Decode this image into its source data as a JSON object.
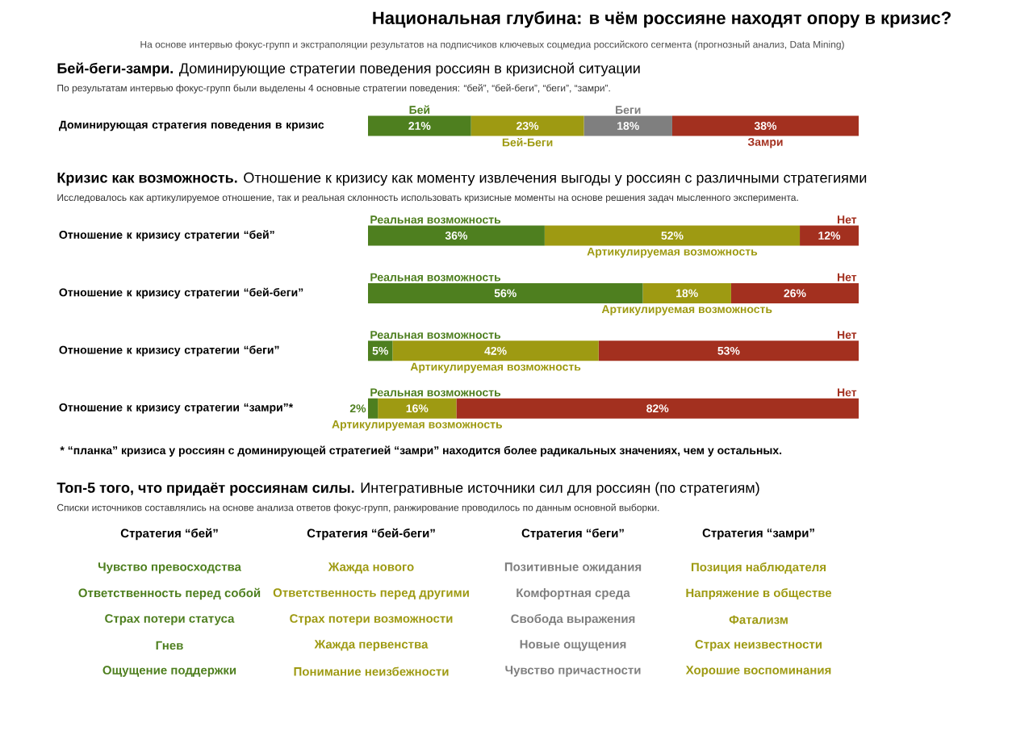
{
  "chart_data": [
    {
      "type": "other",
      "title": "Национальная глубина: в чём россияне находят опору в кризис?",
      "subtitle": "На основе интервью фокус-групп и экстраполяции результатов на подписчиков ключевых соцмедиа российского сегмента (прогнозный анализ, Data Mining)"
    },
    {
      "type": "bar",
      "orientation": "horizontal",
      "stacked": true,
      "tick_labels": "y",
      "title": "**Бей-беги-замри.** Доминирующие стратегии поведения россиян в кризисной ситуации",
      "subtitle": "По результатам интервью фокус-групп были выделены 4 основные стратегии поведения: “бей”, “бей-беги”, “беги”, “замри”.",
      "categories": [
        "Доминирующая стратегия поведения в кризис"
      ],
      "series": [
        {
          "name": "Бей",
          "color": "#4e7f1f",
          "values": [
            21
          ],
          "value_labels": [
            "21%"
          ]
        },
        {
          "name": "Бей-Беги",
          "color": "#9e9a12",
          "values": [
            23
          ],
          "value_labels": [
            "23%"
          ]
        },
        {
          "name": "Беги",
          "color": "#7f7f7f",
          "values": [
            18
          ],
          "value_labels": [
            "18%"
          ]
        },
        {
          "name": "Замри",
          "color": "#a3301f",
          "values": [
            38
          ],
          "value_labels": [
            "38%"
          ]
        }
      ]
    },
    {
      "type": "bar",
      "orientation": "horizontal",
      "stacked": true,
      "tick_labels": "y",
      "title": "**Кризис как возможность.** Отношение к кризису как моменту извлечения выгоды у россиян с различными стратегиями",
      "subtitle": "Исследовалось как артикулируемое отношение, так и реальная склонность использовать кризисные моменты на основе решения задач мысленного эксперимента.",
      "categories": [
        "Отношение к кризису стратегии “бей”",
        "Отношение к кризису стратегии “бей-беги”",
        "Отношение к кризису стратегии “беги”",
        "Отношение к кризису стратегии “замри”*"
      ],
      "series": [
        {
          "name": "Реальная возможность",
          "color": "#4e7f1f",
          "values": [
            36,
            56,
            5,
            2
          ],
          "value_labels": [
            "36%",
            "56%",
            "5%",
            "2%"
          ]
        },
        {
          "name": "Артикулируемая возможность",
          "color": "#9e9a12",
          "values": [
            52,
            18,
            42,
            16
          ],
          "value_labels": [
            "52%",
            "18%",
            "42%",
            "16%"
          ]
        },
        {
          "name": "Нет",
          "color": "#a3301f",
          "values": [
            12,
            26,
            53,
            82
          ],
          "value_labels": [
            "12%",
            "26%",
            "53%",
            "82%"
          ]
        }
      ],
      "annotations": [
        "* “планка” кризиса у россиян с доминирующей стратегией “замри” находится более радикальных значениях, чем у остальных."
      ]
    },
    {
      "type": "other",
      "title": "**Топ-5 того, что придаёт россиянам силы.** Интегративные источники сил для россиян (по стратегиям)",
      "subtitle": "Списки источников составлялись на основе анализа ответов фокус-групп, ранжирование проводилось по данным основной выборки.",
      "categories": [
        "Стратегия “бей”",
        "Стратегия “бей-беги”",
        "Стратегия “беги”",
        "Стратегия “замри”"
      ],
      "colors": [
        "#4e7f1f",
        "#9e9a12",
        "#7f7f7f",
        "#9e9a12"
      ],
      "annotations": [
        "Чувство превосходства",
        "Ответственность перед собой",
        "Страх потери статуса",
        "Гнев",
        "Ощущение поддержки",
        "Жажда нового",
        "Ответственность перед другими",
        "Страх потери возможности",
        "Жажда первенства",
        "Понимание неизбежности",
        "Позитивные ожидания",
        "Комфортная среда",
        "Свобода выражения",
        "Новые ощущения",
        "Чувство причастности",
        "Позиция наблюдателя",
        "Напряжение в обществе",
        "Фатализм",
        "Страх неизвестности",
        "Хорошие воспоминания"
      ]
    }
  ]
}
